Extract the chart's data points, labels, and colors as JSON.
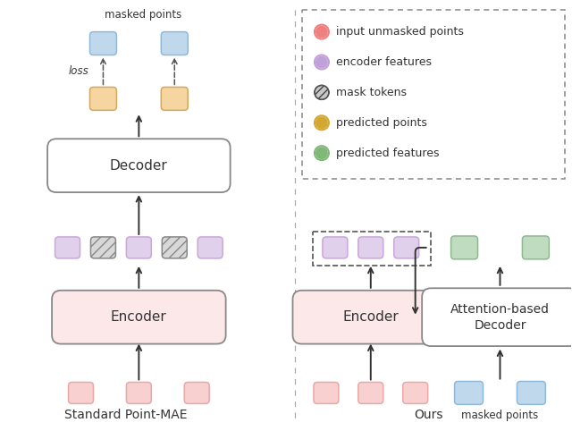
{
  "fig_width": 6.4,
  "fig_height": 4.82,
  "bg_color": "#ffffff",
  "colors": {
    "pink_fill": "#f9d0d0",
    "pink_edge": "#e8a8a8",
    "lav_fill": "#e0d0ec",
    "lav_edge": "#c8a8d8",
    "hatch_fill": "#d8d8d8",
    "hatch_edge": "#888888",
    "orange_fill": "#f5d5a0",
    "orange_edge": "#d4a860",
    "blue_fill": "#c0d8ec",
    "blue_edge": "#90b8d8",
    "green_fill": "#c0dcc0",
    "green_edge": "#90b890",
    "encoder_fill": "#fce8e8",
    "decoder_fill": "#ffffff",
    "box_edge": "#888888",
    "arrow": "#333333",
    "sep": "#aaaaaa"
  },
  "legend_items": [
    {
      "label": "input unmasked points",
      "color": "#f9a0a0"
    },
    {
      "label": "encoder features",
      "color": "#c0a0d8"
    },
    {
      "label": "mask tokens",
      "color": "#404040",
      "hatch": true
    },
    {
      "label": "predicted points",
      "color": "#e0b040"
    },
    {
      "label": "predicted features",
      "color": "#80b880"
    }
  ]
}
